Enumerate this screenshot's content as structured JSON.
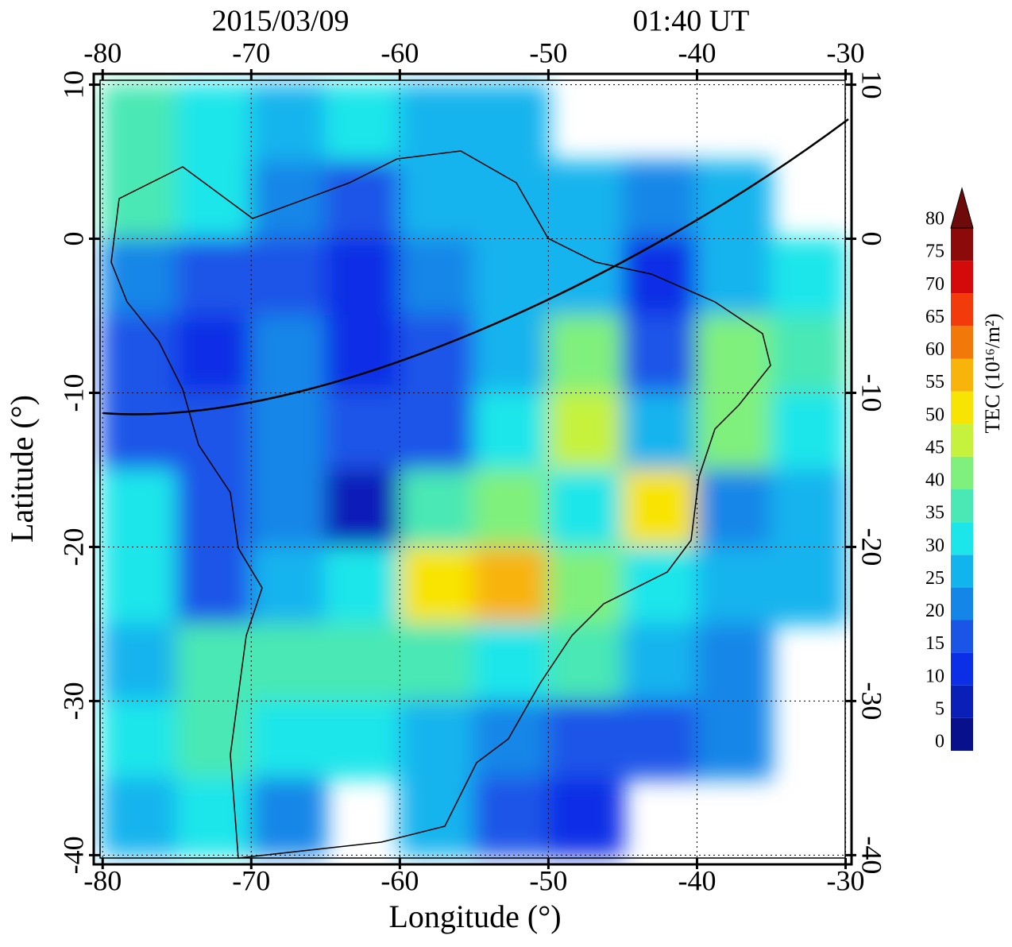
{
  "chart_data": {
    "type": "heatmap",
    "title": "2015/03/09",
    "subtitle": "01:40 UT",
    "x_label": "Longitude (°)",
    "y_label": "Latitude (°)",
    "xlim": [
      -80.6,
      -29.6
    ],
    "ylim": [
      -40.6,
      10.7
    ],
    "xticks": [
      -80,
      -70,
      -60,
      -50,
      -40,
      -30
    ],
    "yticks": [
      -40,
      -30,
      -20,
      -10,
      0,
      10
    ],
    "grid": true,
    "x": [
      -77.5,
      -72.5,
      -67.5,
      -62.5,
      -57.5,
      -52.5,
      -47.5,
      -42.5,
      -37.5,
      -32.5
    ],
    "y": [
      7.5,
      2.5,
      -2.5,
      -7.5,
      -12.5,
      -17.5,
      -22.5,
      -27.5,
      -32.5,
      -37.5
    ],
    "z": [
      [
        35,
        30,
        25,
        30,
        28,
        28,
        null,
        null,
        null,
        null
      ],
      [
        38,
        30,
        22,
        15,
        25,
        28,
        25,
        20,
        25,
        null
      ],
      [
        20,
        18,
        15,
        12,
        20,
        28,
        25,
        12,
        28,
        33
      ],
      [
        18,
        12,
        22,
        10,
        15,
        25,
        40,
        15,
        40,
        38
      ],
      [
        15,
        15,
        20,
        15,
        18,
        32,
        45,
        25,
        40,
        30
      ],
      [
        30,
        15,
        20,
        5,
        35,
        40,
        30,
        50,
        20,
        25
      ],
      [
        30,
        15,
        28,
        30,
        50,
        55,
        40,
        30,
        25,
        25
      ],
      [
        25,
        35,
        38,
        35,
        35,
        30,
        35,
        25,
        22,
        null
      ],
      [
        30,
        38,
        30,
        30,
        28,
        20,
        15,
        15,
        20,
        null
      ],
      [
        28,
        30,
        20,
        null,
        25,
        18,
        12,
        null,
        null,
        null
      ]
    ],
    "colorbar": {
      "label": "TEC (10¹⁶/m²)",
      "levels": [
        0,
        5,
        10,
        15,
        20,
        25,
        30,
        35,
        40,
        45,
        50,
        55,
        60,
        65,
        70,
        75,
        80
      ],
      "colors": [
        "#08108c",
        "#0a1fb8",
        "#0a2fe6",
        "#1a55e8",
        "#1486e8",
        "#12b4ee",
        "#1de6ea",
        "#4ae8b4",
        "#80f07c",
        "#c6f23e",
        "#f8e404",
        "#f8b40a",
        "#f2780a",
        "#f23a0a",
        "#d40a0a",
        "#8c0a0a"
      ],
      "extend_color": "#6e0a0a"
    }
  }
}
